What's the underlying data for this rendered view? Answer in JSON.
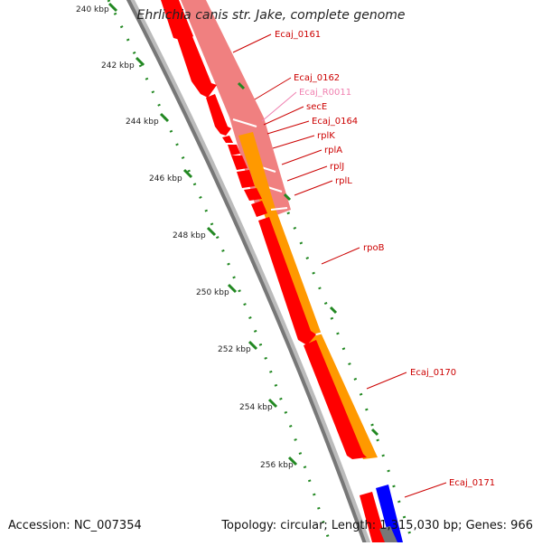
{
  "map": {
    "title": "Ehrlichia canis str. Jake, complete genome",
    "accession": "Accession: NC_007354",
    "summary": "Topology: circular; Length: 1,315,030 bp; Genes: 966"
  },
  "ruler": {
    "ticks": [
      "240 kbp",
      "242 kbp",
      "244 kbp",
      "246 kbp",
      "248 kbp",
      "250 kbp",
      "252 kbp",
      "254 kbp",
      "256 kbp"
    ]
  },
  "genes": [
    {
      "label": "Ecaj_0161",
      "color": "#cc0000"
    },
    {
      "label": "Ecaj_0162",
      "color": "#cc0000"
    },
    {
      "label": "Ecaj_R0011",
      "color": "#f080b0"
    },
    {
      "label": "secE",
      "color": "#cc0000"
    },
    {
      "label": "Ecaj_0164",
      "color": "#cc0000"
    },
    {
      "label": "rplK",
      "color": "#cc0000"
    },
    {
      "label": "rplA",
      "color": "#cc0000"
    },
    {
      "label": "rplJ",
      "color": "#cc0000"
    },
    {
      "label": "rplL",
      "color": "#cc0000"
    },
    {
      "label": "rpoB",
      "color": "#cc0000"
    },
    {
      "label": "Ecaj_0170",
      "color": "#cc0000"
    },
    {
      "label": "Ecaj_0171",
      "color": "#cc0000"
    }
  ],
  "colors": {
    "cds": "#ff0000",
    "cds_track": "#f08080",
    "orange_track": "#ff9900",
    "blue_track": "#0000ff",
    "backbone": "#888888",
    "ruler": "#228822"
  }
}
